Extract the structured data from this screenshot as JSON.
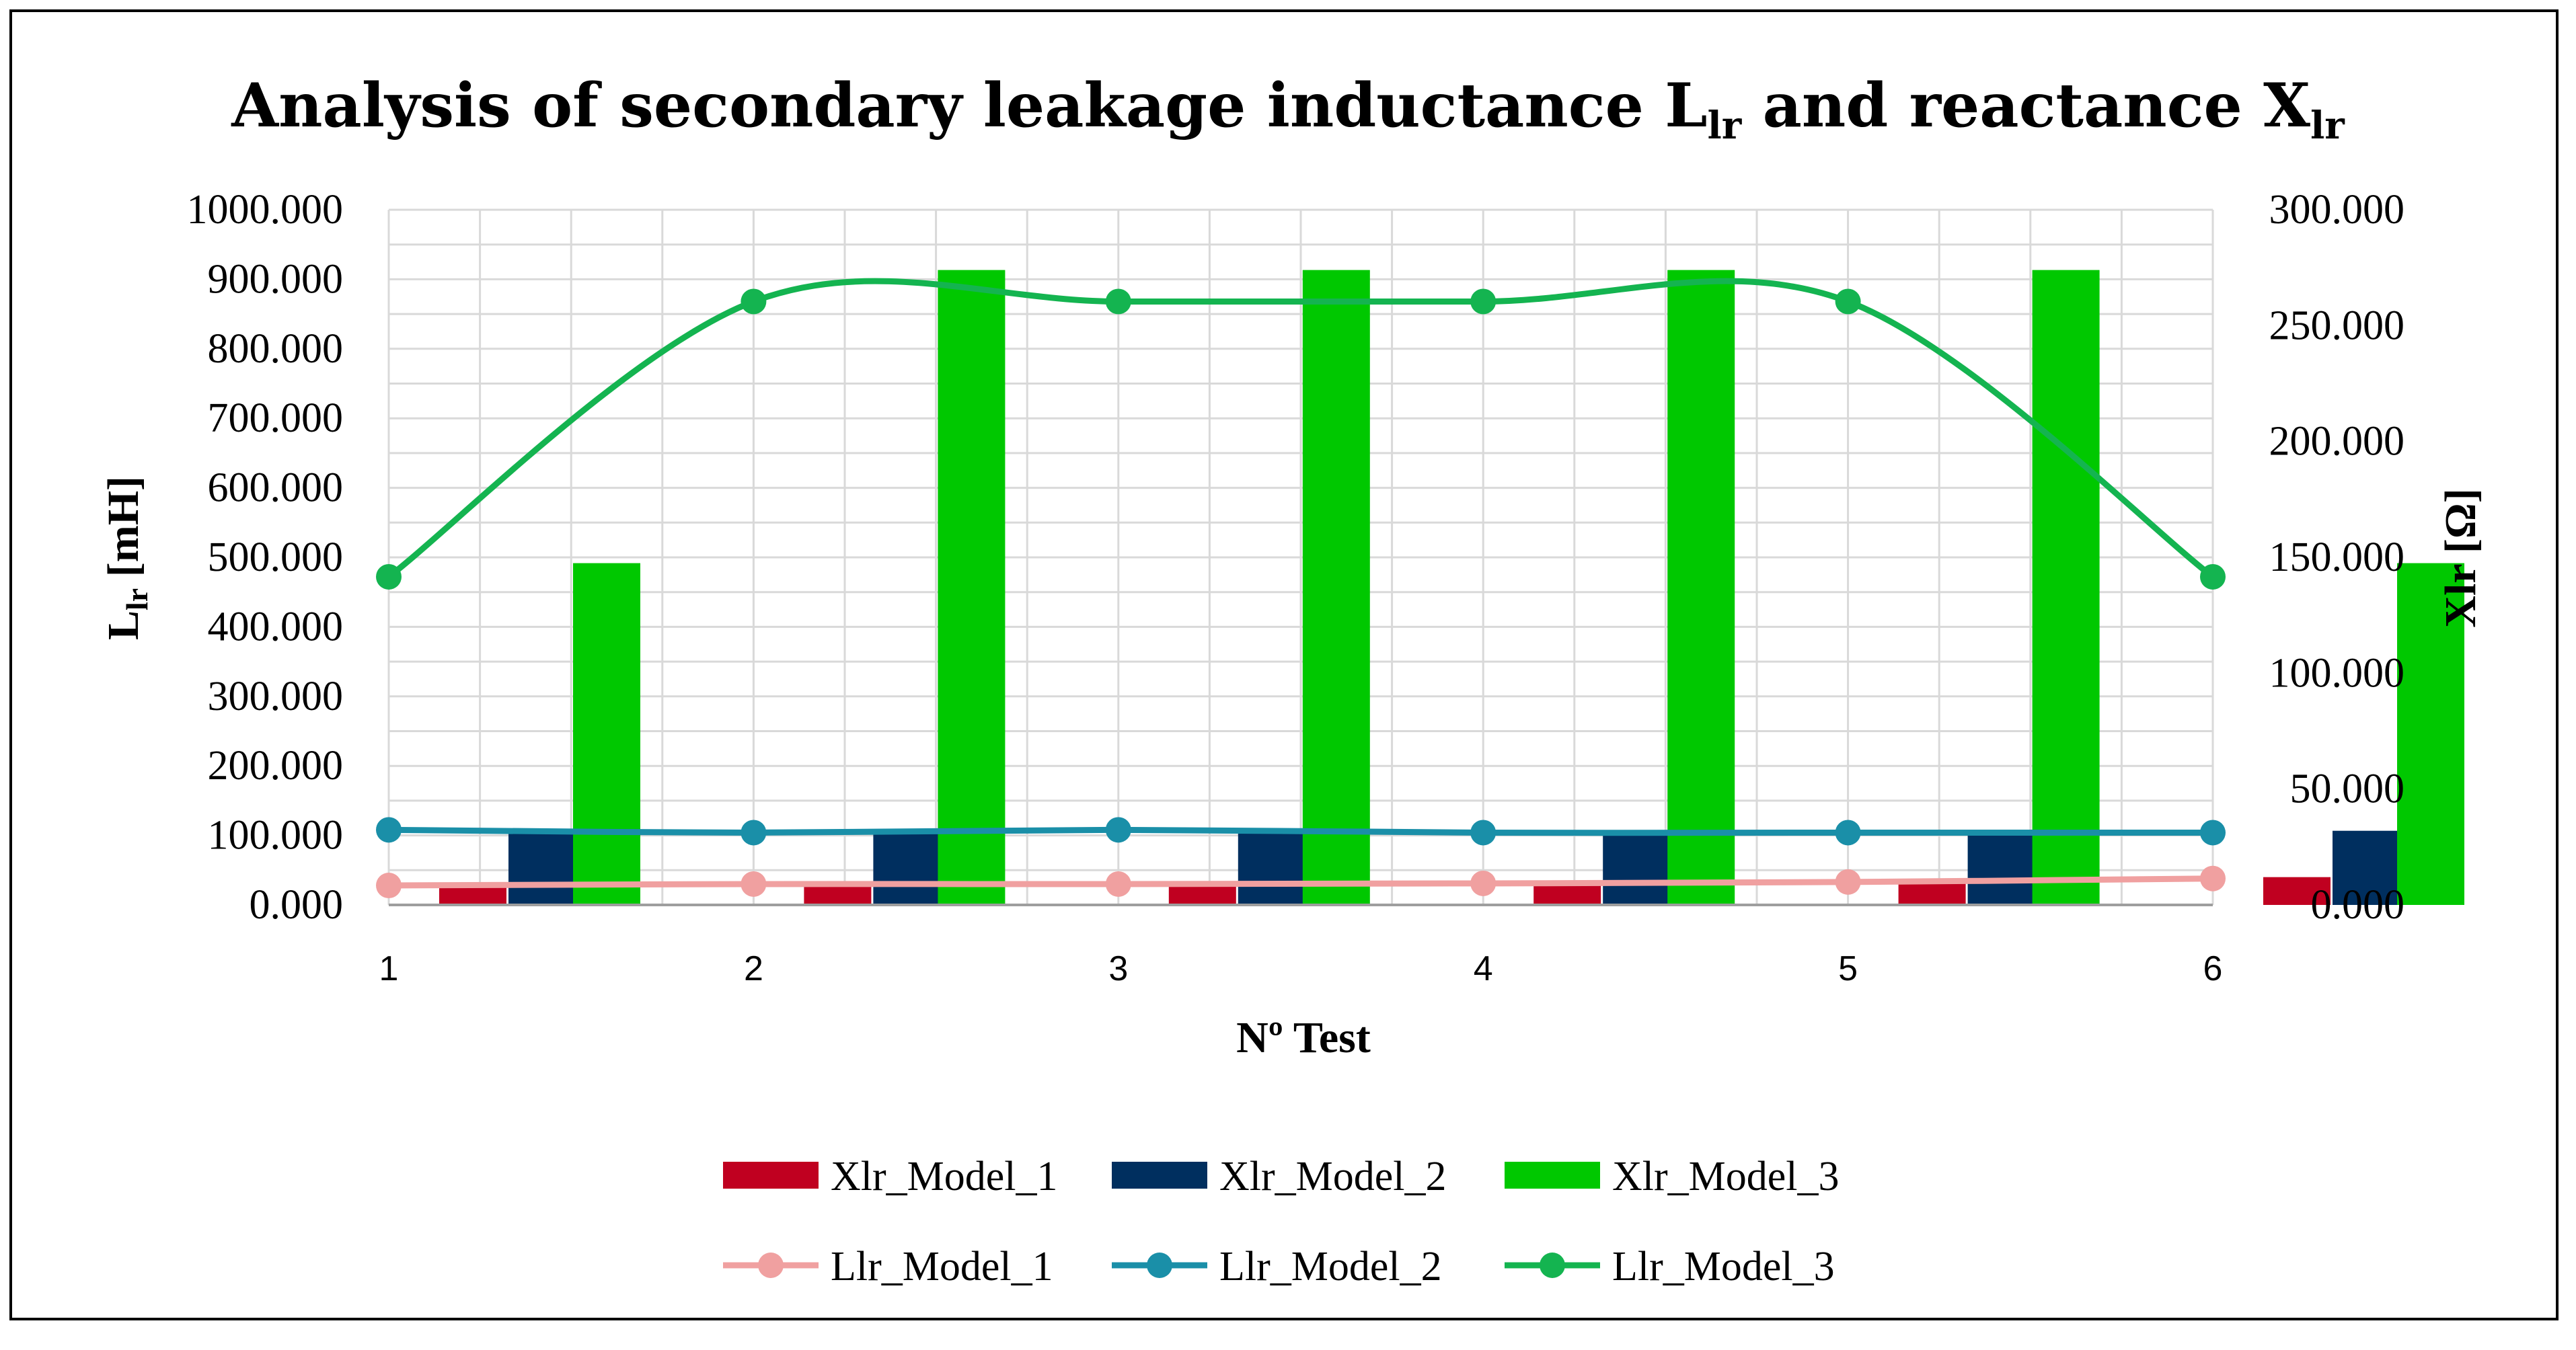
{
  "chart_data": {
    "type": "bar+line",
    "title_main": "Analysis  of  secondary  leakage  inductance  L",
    "title_sub1": "lr",
    "title_mid": " and reactance X",
    "title_sub2": "lr",
    "xlabel": "Nº Test",
    "ylabel_main": "L",
    "ylabel_sub": "lr",
    "ylabel_unit": " [mH]",
    "y2label": "Xlr [Ω]",
    "categories": [
      "1",
      "2",
      "3",
      "4",
      "5",
      "6"
    ],
    "ylim": [
      0,
      1000
    ],
    "y2lim": [
      0,
      300
    ],
    "y_ticks": [
      "0.000",
      "100.000",
      "200.000",
      "300.000",
      "400.000",
      "500.000",
      "600.000",
      "700.000",
      "800.000",
      "900.000",
      "1000.000"
    ],
    "y2_ticks": [
      "0.000",
      "50.000",
      "100.000",
      "150.000",
      "200.000",
      "250.000",
      "300.000"
    ],
    "bar_series": [
      {
        "name": "Xlr_Model_1",
        "color": "#C00020",
        "values": [
          9,
          10,
          10,
          10.5,
          11,
          12
        ]
      },
      {
        "name": "Xlr_Model_2",
        "color": "#002F5F",
        "values": [
          32,
          32,
          32,
          32,
          32,
          32
        ]
      },
      {
        "name": "Xlr_Model_3",
        "color": "#00C800",
        "values": [
          147.5,
          274,
          274,
          274,
          274,
          147.5
        ]
      }
    ],
    "line_series": [
      {
        "name": "Llr_Model_1",
        "color": "#F0A0A0",
        "values": [
          28,
          30,
          30,
          31,
          33,
          38
        ]
      },
      {
        "name": "Llr_Model_2",
        "color": "#1A8FA8",
        "values": [
          108,
          104,
          108,
          104,
          104,
          104
        ]
      },
      {
        "name": "Llr_Model_3",
        "color": "#14B450",
        "values": [
          472,
          868,
          868,
          868,
          868,
          472
        ]
      }
    ],
    "grid": true,
    "legend_position": "bottom"
  }
}
